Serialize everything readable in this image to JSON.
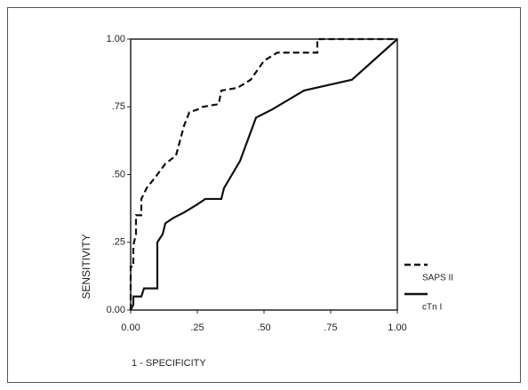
{
  "chart_data": {
    "type": "line",
    "xlabel": "1 - SPECIFICITY",
    "ylabel": "SENSITIVITY",
    "xlim": [
      0,
      1
    ],
    "ylim": [
      0,
      1
    ],
    "xticks": [
      {
        "value": 0,
        "label": "0.00"
      },
      {
        "value": 0.25,
        "label": ".25"
      },
      {
        "value": 0.5,
        "label": ".50"
      },
      {
        "value": 0.75,
        "label": ".75"
      },
      {
        "value": 1,
        "label": "1.00"
      }
    ],
    "yticks": [
      {
        "value": 0,
        "label": "0.00"
      },
      {
        "value": 0.25,
        "label": ".25"
      },
      {
        "value": 0.5,
        "label": ".50"
      },
      {
        "value": 0.75,
        "label": ".75"
      },
      {
        "value": 1,
        "label": "1.00"
      }
    ],
    "series": [
      {
        "name": "SAPS II",
        "color": "#111111",
        "style": "dashed",
        "x": [
          0,
          0,
          0.01,
          0.01,
          0.02,
          0.02,
          0.04,
          0.04,
          0.06,
          0.1,
          0.13,
          0.17,
          0.2,
          0.22,
          0.25,
          0.27,
          0.33,
          0.34,
          0.4,
          0.45,
          0.5,
          0.55,
          0.7,
          0.7,
          1
        ],
        "values": [
          0,
          0.16,
          0.16,
          0.24,
          0.28,
          0.35,
          0.35,
          0.41,
          0.45,
          0.5,
          0.54,
          0.57,
          0.68,
          0.73,
          0.74,
          0.75,
          0.76,
          0.81,
          0.82,
          0.85,
          0.92,
          0.95,
          0.95,
          1,
          1
        ]
      },
      {
        "name": "cTn I",
        "color": "#111111",
        "style": "solid",
        "x": [
          0,
          0.01,
          0.01,
          0.04,
          0.05,
          0.1,
          0.1,
          0.12,
          0.13,
          0.16,
          0.2,
          0.25,
          0.28,
          0.34,
          0.35,
          0.41,
          0.47,
          0.53,
          0.65,
          0.83,
          1
        ],
        "values": [
          0,
          0.02,
          0.05,
          0.05,
          0.08,
          0.08,
          0.25,
          0.28,
          0.32,
          0.34,
          0.36,
          0.39,
          0.41,
          0.41,
          0.45,
          0.55,
          0.71,
          0.74,
          0.81,
          0.85,
          1
        ]
      }
    ]
  }
}
